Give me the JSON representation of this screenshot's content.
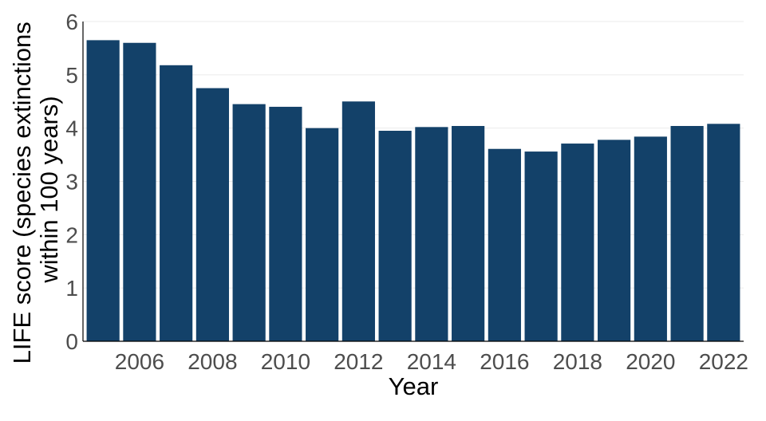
{
  "chart_data": {
    "type": "bar",
    "title": "",
    "xlabel": "Year",
    "ylabel_line1": "LIFE score (species extinctions",
    "ylabel_line2": "within 100 years)",
    "categories": [
      "2005",
      "2006",
      "2007",
      "2008",
      "2009",
      "2010",
      "2011",
      "2012",
      "2013",
      "2014",
      "2015",
      "2016",
      "2017",
      "2018",
      "2019",
      "2020",
      "2021",
      "2022"
    ],
    "x": [
      2005,
      2006,
      2007,
      2008,
      2009,
      2010,
      2011,
      2012,
      2013,
      2014,
      2015,
      2016,
      2017,
      2018,
      2019,
      2020,
      2021,
      2022
    ],
    "values": [
      5.65,
      5.6,
      5.18,
      4.75,
      4.45,
      4.4,
      4.0,
      4.5,
      3.95,
      4.02,
      4.04,
      3.61,
      3.56,
      3.71,
      3.78,
      3.84,
      4.04,
      4.08
    ],
    "xlim": [
      2004.45,
      2022.55
    ],
    "ylim": [
      0,
      6
    ],
    "x_ticks": [
      2006,
      2008,
      2010,
      2012,
      2014,
      2016,
      2018,
      2020,
      2022
    ],
    "y_ticks": [
      0,
      1,
      2,
      3,
      4,
      5,
      6
    ],
    "grid": "horizontal",
    "legend": "none",
    "bar_color": "#134169",
    "grid_color": "#ebebeb",
    "tick_label_color": "#4d4d4d"
  }
}
